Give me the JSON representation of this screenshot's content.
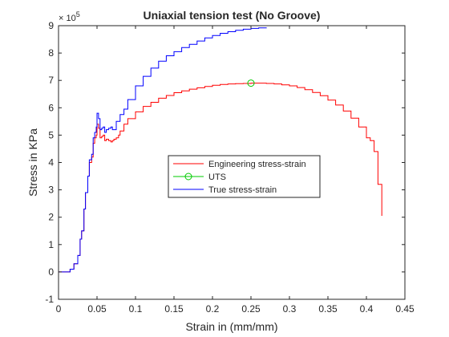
{
  "chart_data": {
    "type": "line",
    "title": "Uniaxial tension test (No Groove)",
    "xlabel": "Strain in (mm/mm)",
    "ylabel": "Stress in KPa",
    "y_exponent_label": "× 10",
    "y_exponent_power": "5",
    "xlim": [
      0,
      0.45
    ],
    "ylim": [
      -1,
      9
    ],
    "y_scale_multiplier": 100000,
    "x_ticks": [
      0,
      0.05,
      0.1,
      0.15,
      0.2,
      0.25,
      0.3,
      0.35,
      0.4,
      0.45
    ],
    "x_tick_labels": [
      "0",
      "0.05",
      "0.1",
      "0.15",
      "0.2",
      "0.25",
      "0.3",
      "0.35",
      "0.4",
      "0.45"
    ],
    "y_ticks": [
      -1,
      0,
      1,
      2,
      3,
      4,
      5,
      6,
      7,
      8,
      9
    ],
    "y_tick_labels": [
      "-1",
      "0",
      "1",
      "2",
      "3",
      "4",
      "5",
      "6",
      "7",
      "8",
      "9"
    ],
    "grid": false,
    "legend_position": "center",
    "series": [
      {
        "name": "Engineering stress-strain",
        "color": "#ff0000",
        "style": "line",
        "x": [
          0,
          0.01,
          0.015,
          0.02,
          0.025,
          0.028,
          0.03,
          0.033,
          0.035,
          0.038,
          0.04,
          0.043,
          0.045,
          0.047,
          0.049,
          0.05,
          0.052,
          0.054,
          0.056,
          0.058,
          0.06,
          0.062,
          0.065,
          0.068,
          0.07,
          0.072,
          0.075,
          0.078,
          0.08,
          0.085,
          0.09,
          0.1,
          0.11,
          0.12,
          0.13,
          0.14,
          0.15,
          0.16,
          0.17,
          0.18,
          0.19,
          0.2,
          0.21,
          0.22,
          0.23,
          0.24,
          0.25,
          0.26,
          0.27,
          0.28,
          0.29,
          0.3,
          0.31,
          0.32,
          0.33,
          0.34,
          0.35,
          0.36,
          0.37,
          0.38,
          0.39,
          0.4,
          0.405,
          0.41,
          0.415,
          0.42
        ],
        "y": [
          0,
          0,
          0.1,
          0.3,
          0.6,
          1.2,
          1.5,
          2.3,
          2.9,
          3.5,
          4.0,
          4.2,
          4.7,
          4.9,
          5.0,
          5.4,
          5.25,
          4.9,
          4.95,
          5.0,
          4.8,
          4.85,
          4.8,
          4.75,
          4.8,
          4.85,
          4.9,
          5.0,
          5.15,
          5.4,
          5.6,
          5.85,
          6.05,
          6.2,
          6.35,
          6.45,
          6.55,
          6.62,
          6.68,
          6.73,
          6.78,
          6.82,
          6.85,
          6.87,
          6.88,
          6.89,
          6.9,
          6.9,
          6.89,
          6.87,
          6.84,
          6.8,
          6.74,
          6.66,
          6.56,
          6.44,
          6.28,
          6.1,
          5.88,
          5.62,
          5.3,
          4.9,
          4.8,
          4.4,
          3.2,
          2.05
        ]
      },
      {
        "name": "UTS",
        "color": "#00cc00",
        "style": "marker-circle",
        "x": [
          0.25
        ],
        "y": [
          6.9
        ]
      },
      {
        "name": "True stress-strain",
        "color": "#0000ff",
        "style": "line",
        "x": [
          0,
          0.01,
          0.015,
          0.02,
          0.025,
          0.028,
          0.03,
          0.033,
          0.035,
          0.038,
          0.04,
          0.043,
          0.045,
          0.047,
          0.049,
          0.05,
          0.052,
          0.054,
          0.056,
          0.058,
          0.06,
          0.062,
          0.065,
          0.068,
          0.07,
          0.075,
          0.08,
          0.085,
          0.09,
          0.1,
          0.11,
          0.12,
          0.13,
          0.14,
          0.15,
          0.16,
          0.17,
          0.18,
          0.19,
          0.2,
          0.21,
          0.22,
          0.23,
          0.24,
          0.25,
          0.26,
          0.27
        ],
        "y": [
          0,
          0,
          0.1,
          0.3,
          0.6,
          1.2,
          1.5,
          2.3,
          2.9,
          3.5,
          4.1,
          4.3,
          4.9,
          5.1,
          5.3,
          5.8,
          5.6,
          5.2,
          5.25,
          5.3,
          5.1,
          5.2,
          5.25,
          5.3,
          5.2,
          5.5,
          5.75,
          5.95,
          6.3,
          6.8,
          7.15,
          7.45,
          7.7,
          7.9,
          8.05,
          8.2,
          8.32,
          8.44,
          8.55,
          8.64,
          8.72,
          8.78,
          8.83,
          8.87,
          8.9,
          8.92,
          8.93
        ]
      }
    ]
  }
}
